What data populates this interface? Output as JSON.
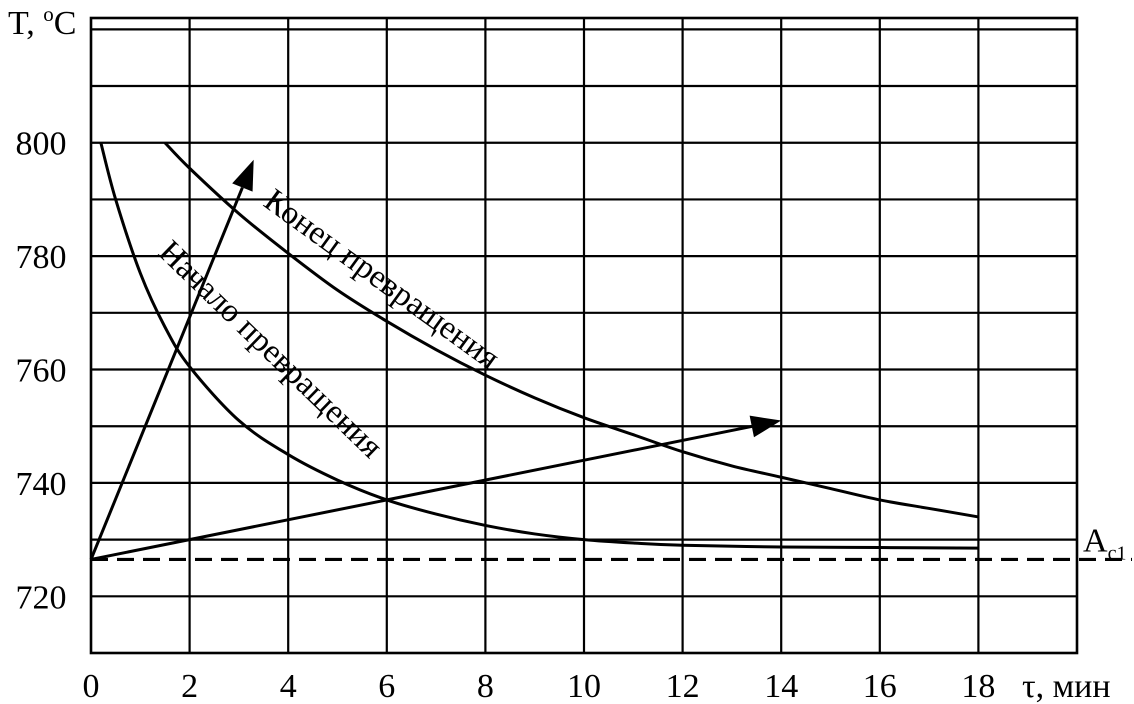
{
  "chart_data": {
    "type": "line",
    "title": "",
    "xlabel": "τ, мин",
    "ylabel_main": "T, ",
    "ylabel_sup": "o",
    "ylabel_unit": "C",
    "xlim": [
      0,
      20
    ],
    "ylim": [
      710,
      822
    ],
    "x_ticks": [
      "0",
      "2",
      "4",
      "6",
      "8",
      "10",
      "12",
      "14",
      "16",
      "18"
    ],
    "y_ticks": [
      "720",
      "740",
      "760",
      "780",
      "800"
    ],
    "grid": true,
    "series": [
      {
        "name": "Начало превращения",
        "x": [
          0.2,
          0.5,
          1.0,
          1.5,
          2.0,
          3.0,
          4.0,
          5.0,
          6.0,
          7.0,
          8.0,
          9.0,
          10.0,
          11.0,
          12.0,
          14.0,
          16.0,
          18.0
        ],
        "y": [
          800,
          790,
          777,
          767.5,
          760.5,
          751,
          745,
          740.5,
          737,
          734.5,
          732.5,
          731,
          730,
          729.4,
          729,
          728.7,
          728.6,
          728.5
        ]
      },
      {
        "name": "Конец превращения",
        "x": [
          1.5,
          2.0,
          3.0,
          4.0,
          5.0,
          6.0,
          7.0,
          8.0,
          9.0,
          10.0,
          11.0,
          12.0,
          13.0,
          14.0,
          15.0,
          16.0,
          17.0,
          18.0
        ],
        "y": [
          800,
          795.5,
          787.5,
          780.5,
          774,
          768.5,
          763.5,
          759,
          755,
          751.5,
          748.5,
          745.5,
          743,
          741,
          739,
          737,
          735.5,
          734
        ]
      }
    ],
    "arrows": [
      {
        "from": [
          0.0,
          726.5
        ],
        "to": [
          3.3,
          797
        ]
      },
      {
        "from": [
          0.0,
          726.5
        ],
        "to": [
          14.0,
          751
        ]
      }
    ],
    "reference_line": {
      "y": 726.5,
      "label_main": "A",
      "label_sub": "c1",
      "style": "dashed"
    }
  }
}
